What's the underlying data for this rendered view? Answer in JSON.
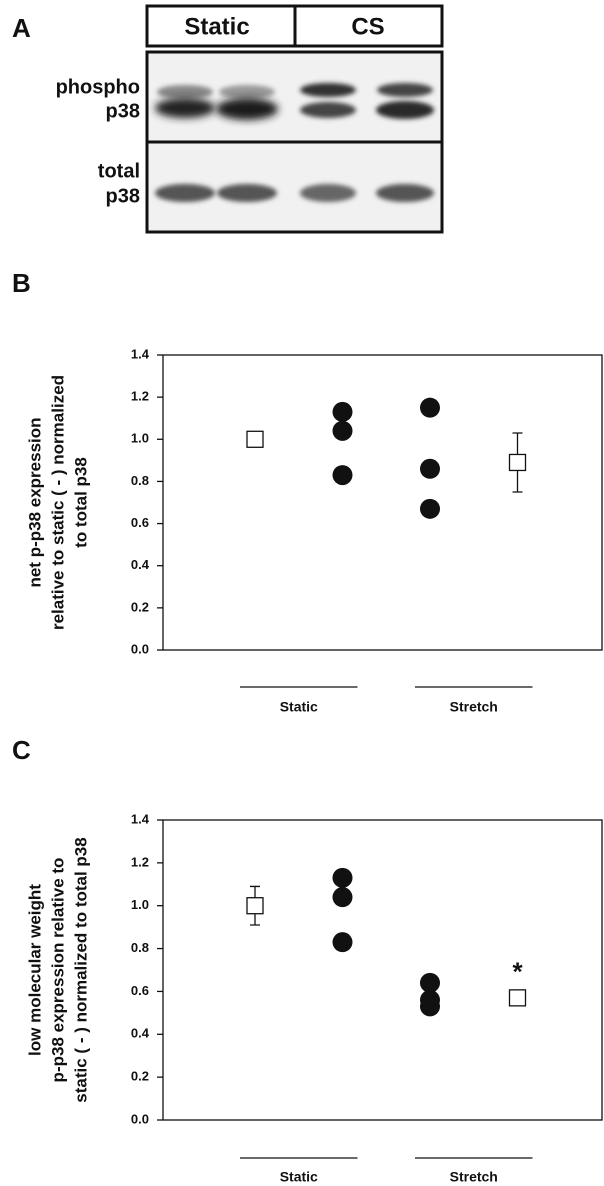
{
  "panel_a": {
    "label": "A",
    "columns": [
      "Static",
      "CS"
    ],
    "rows": [
      [
        "phospho",
        "p38"
      ],
      [
        "total",
        "p38"
      ]
    ]
  },
  "chart_data": [
    {
      "type": "scatter",
      "panel_label": "B",
      "ylabel": [
        "net p-p38 expression",
        "relative to static ( - ) normalized",
        "to total p38"
      ],
      "categories": [
        null,
        null,
        null,
        null
      ],
      "groups": [
        "Static",
        "Stretch"
      ],
      "series": [
        {
          "marker": "square",
          "color": "#ffffff",
          "values": [
            1,
            null,
            null,
            0.89
          ],
          "errors": [
            0.03,
            null,
            null,
            0.14
          ]
        },
        {
          "marker": "circle",
          "color": "#111111",
          "values": [
            null,
            1.13,
            1.15,
            null
          ]
        },
        {
          "marker": "circle",
          "color": "#111111",
          "values": [
            null,
            1.04,
            0.86,
            null
          ]
        },
        {
          "marker": "circle",
          "color": "#111111",
          "values": [
            null,
            0.83,
            0.67,
            null
          ]
        }
      ],
      "ylim": [
        0,
        1.4
      ],
      "yticks": [
        {
          "value": 0,
          "label": "0.0"
        },
        0.2,
        0.4,
        0.6,
        0.8,
        {
          "value": 1,
          "label": "1.0"
        },
        1.2,
        1.4
      ]
    },
    {
      "type": "scatter",
      "panel_label": "C",
      "ylabel": [
        "low molecular weight",
        "p-p38 expression relative to",
        "static ( - ) normalized to total p38"
      ],
      "categories": [
        null,
        null,
        null,
        null
      ],
      "groups": [
        "Static",
        "Stretch"
      ],
      "series": [
        {
          "marker": "square",
          "color": "#ffffff",
          "values": [
            1,
            null,
            null,
            0.57
          ],
          "errors": [
            0.09,
            null,
            null,
            0.01
          ]
        },
        {
          "marker": "circle",
          "color": "#111111",
          "values": [
            null,
            1.13,
            0.64,
            null
          ]
        },
        {
          "marker": "circle",
          "color": "#111111",
          "values": [
            null,
            1.04,
            0.56,
            null
          ]
        },
        {
          "marker": "circle",
          "color": "#111111",
          "values": [
            null,
            0.83,
            0.53,
            null
          ]
        }
      ],
      "annotations": [
        "*"
      ],
      "ylim": [
        0,
        1.4
      ],
      "yticks": [
        {
          "value": 0,
          "label": "0.0"
        },
        0.2,
        0.4,
        0.6,
        0.8,
        {
          "value": 1,
          "label": "1.0"
        },
        1.2,
        1.4
      ]
    }
  ]
}
